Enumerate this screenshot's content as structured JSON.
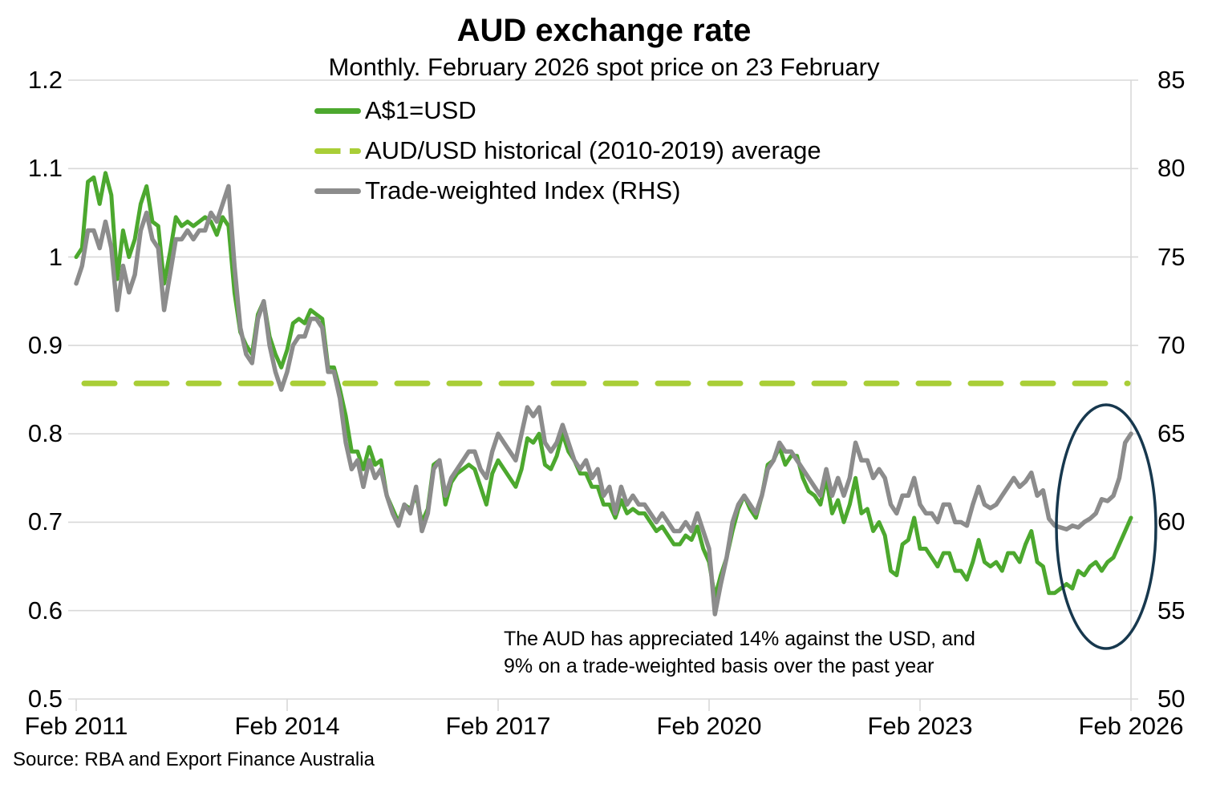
{
  "source": "Source: RBA and Export Finance Australia",
  "annotation": {
    "line1": "The AUD has appreciated 14% against the USD, and",
    "line2": "9% on a trade-weighted basis over the past year"
  },
  "colors": {
    "aud_green": "#4CA82E",
    "average_lime": "#A9CE37",
    "twi_gray": "#8C8C8C",
    "ellipse_navy": "#17384E",
    "gridline": "#D8D8D8",
    "text": "#000000"
  },
  "chart_data": {
    "type": "line",
    "title": "AUD exchange rate",
    "subtitle": "Monthly. February 2026 spot price on 23 February",
    "frequency": "monthly",
    "x_start": "Feb 2011",
    "x_end": "Feb 2026",
    "x_tick_labels": [
      "Feb 2011",
      "Feb 2014",
      "Feb 2017",
      "Feb 2020",
      "Feb 2023",
      "Feb 2026"
    ],
    "grid": "horizontal",
    "legend_position": "top-left-inside",
    "left_axis": {
      "ticks": [
        "1.2",
        "1.1",
        "1",
        "0.9",
        "0.8",
        "0.7",
        "0.6",
        "0.5"
      ],
      "range": [
        0.5,
        1.2
      ],
      "measures": "A$1=USD"
    },
    "right_axis": {
      "ticks": [
        "85",
        "80",
        "75",
        "70",
        "65",
        "60",
        "55",
        "50"
      ],
      "range": [
        50,
        85
      ],
      "measures": "Trade-weighted Index"
    },
    "series": [
      {
        "name": "A$1=USD",
        "axis": "left",
        "style": "solid",
        "color": "#4CA82E",
        "values": [
          1.0,
          1.01,
          1.085,
          1.09,
          1.06,
          1.095,
          1.07,
          0.975,
          1.03,
          1.0,
          1.02,
          1.06,
          1.08,
          1.04,
          1.035,
          0.97,
          1.005,
          1.045,
          1.035,
          1.04,
          1.035,
          1.04,
          1.045,
          1.04,
          1.025,
          1.045,
          1.035,
          0.96,
          0.915,
          0.9,
          0.89,
          0.935,
          0.95,
          0.91,
          0.89,
          0.875,
          0.895,
          0.925,
          0.93,
          0.925,
          0.94,
          0.935,
          0.93,
          0.875,
          0.875,
          0.85,
          0.82,
          0.78,
          0.78,
          0.76,
          0.785,
          0.765,
          0.77,
          0.73,
          0.715,
          0.7,
          0.72,
          0.715,
          0.73,
          0.7,
          0.715,
          0.765,
          0.77,
          0.72,
          0.745,
          0.755,
          0.76,
          0.765,
          0.76,
          0.74,
          0.72,
          0.755,
          0.77,
          0.76,
          0.75,
          0.74,
          0.76,
          0.795,
          0.79,
          0.8,
          0.765,
          0.76,
          0.775,
          0.8,
          0.78,
          0.77,
          0.755,
          0.755,
          0.74,
          0.74,
          0.72,
          0.72,
          0.705,
          0.725,
          0.71,
          0.715,
          0.71,
          0.71,
          0.7,
          0.69,
          0.695,
          0.685,
          0.675,
          0.675,
          0.685,
          0.68,
          0.695,
          0.67,
          0.655,
          0.615,
          0.64,
          0.66,
          0.69,
          0.715,
          0.73,
          0.715,
          0.705,
          0.73,
          0.765,
          0.77,
          0.785,
          0.765,
          0.775,
          0.775,
          0.75,
          0.735,
          0.73,
          0.72,
          0.75,
          0.71,
          0.725,
          0.7,
          0.72,
          0.75,
          0.71,
          0.715,
          0.69,
          0.7,
          0.685,
          0.645,
          0.64,
          0.675,
          0.68,
          0.705,
          0.67,
          0.67,
          0.66,
          0.65,
          0.665,
          0.665,
          0.645,
          0.645,
          0.635,
          0.655,
          0.68,
          0.655,
          0.65,
          0.655,
          0.645,
          0.665,
          0.665,
          0.655,
          0.675,
          0.69,
          0.655,
          0.65,
          0.62,
          0.62,
          0.625,
          0.63,
          0.625,
          0.645,
          0.64,
          0.65,
          0.655,
          0.645,
          0.655,
          0.66,
          0.675,
          0.69,
          0.705
        ]
      },
      {
        "name": "AUD/USD historical (2010-2019) average",
        "axis": "left",
        "style": "dashed",
        "color": "#A9CE37",
        "value": 0.857
      },
      {
        "name": "Trade-weighted Index (RHS)",
        "axis": "right",
        "style": "solid",
        "color": "#8C8C8C",
        "values": [
          73.5,
          74.5,
          76.5,
          76.5,
          75.5,
          77.0,
          75.5,
          72.0,
          74.5,
          73.0,
          74.0,
          76.5,
          77.5,
          76.0,
          75.5,
          72.0,
          74.0,
          76.0,
          76.0,
          76.5,
          76.0,
          76.5,
          76.5,
          77.5,
          77.0,
          78.0,
          79.0,
          74.5,
          71.0,
          69.5,
          69.0,
          71.5,
          72.5,
          70.0,
          68.5,
          67.5,
          68.5,
          70.0,
          70.5,
          70.5,
          71.5,
          71.5,
          71.0,
          68.5,
          68.5,
          67.0,
          64.5,
          63.0,
          63.5,
          62.0,
          63.5,
          62.5,
          63.0,
          61.5,
          60.5,
          59.8,
          61.0,
          60.5,
          62.0,
          59.5,
          60.5,
          63.0,
          63.5,
          61.5,
          62.5,
          63.0,
          63.5,
          64.0,
          64.0,
          63.0,
          62.5,
          64.0,
          65.0,
          64.5,
          64.0,
          63.5,
          65.0,
          66.5,
          66.0,
          66.5,
          64.5,
          64.0,
          64.5,
          65.5,
          64.5,
          63.5,
          63.0,
          63.5,
          62.5,
          63.0,
          61.5,
          62.0,
          60.5,
          62.0,
          61.0,
          61.5,
          61.0,
          61.0,
          60.5,
          60.0,
          60.5,
          60.0,
          59.5,
          59.5,
          60.0,
          59.5,
          60.5,
          59.5,
          58.5,
          54.8,
          56.5,
          58.0,
          60.0,
          61.0,
          61.5,
          61.0,
          60.5,
          61.5,
          63.0,
          63.5,
          64.5,
          64.0,
          64.0,
          63.5,
          63.0,
          62.5,
          62.0,
          61.5,
          63.0,
          61.5,
          62.5,
          61.5,
          62.5,
          64.5,
          63.5,
          63.5,
          62.5,
          63.0,
          62.5,
          61.0,
          60.5,
          61.5,
          61.5,
          62.5,
          61.0,
          60.5,
          60.5,
          60.0,
          61.0,
          61.0,
          60.0,
          60.0,
          59.8,
          61.0,
          62.0,
          61.0,
          60.8,
          61.0,
          61.5,
          62.0,
          62.5,
          62.0,
          62.3,
          62.8,
          61.5,
          61.8,
          60.2,
          59.8,
          59.7,
          59.6,
          59.8,
          59.7,
          60.0,
          60.2,
          60.5,
          61.3,
          61.2,
          61.5,
          62.5,
          64.5,
          65.0
        ]
      }
    ],
    "annotations": {
      "ellipse_note": "navy ellipse highlighting the past year of data (Feb 2025 - Feb 2026)"
    }
  }
}
